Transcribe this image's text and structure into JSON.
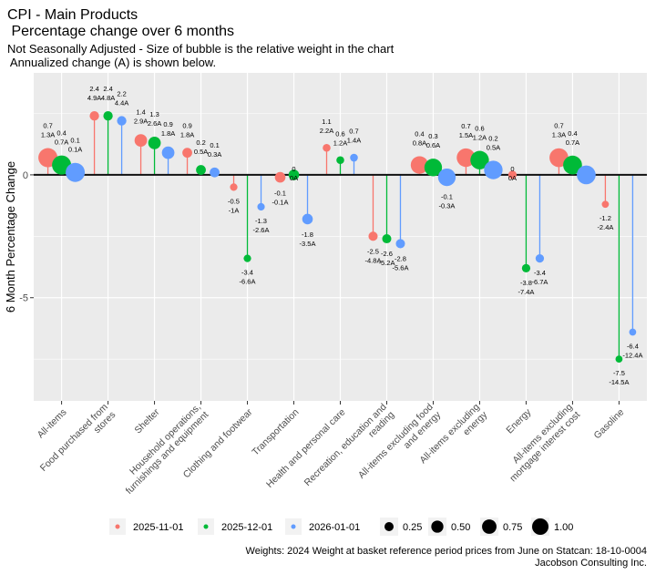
{
  "chart_data": {
    "type": "scatter",
    "subtype": "lollipop-bubble",
    "title": "CPI - Main Products",
    "title_line2": " Percentage change over 6 months",
    "subtitle": "Not Seasonally Adjusted - Size of bubble is the relative weight in the chart",
    "subtitle_line2": " Annualized change (A) is shown below.",
    "ylabel": "6 Month Percentage Change",
    "xlabel": "",
    "ylim": [
      -9.2,
      4.15
    ],
    "yticks": [
      0,
      -5
    ],
    "ytick_labels": [
      "0",
      "-5"
    ],
    "grid": true,
    "zero_line": true,
    "colors": {
      "2025-11-01": "#F8766D",
      "2025-12-01": "#00BA38",
      "2026-01-01": "#619CFF"
    },
    "series_names": [
      "2025-11-01",
      "2025-12-01",
      "2026-01-01"
    ],
    "categories": [
      {
        "label": [
          "All-items"
        ],
        "weight": 1.0,
        "values": [
          0.7,
          0.4,
          0.1
        ],
        "labels": [
          [
            "0.7",
            "1.3A"
          ],
          [
            "0.4",
            "0.7A"
          ],
          [
            "0.1",
            "0.1A"
          ]
        ]
      },
      {
        "label": [
          "Food purchased from",
          "stores"
        ],
        "weight": 0.11,
        "values": [
          2.4,
          2.4,
          2.2
        ],
        "labels": [
          [
            "2.4",
            "4.9A"
          ],
          [
            "2.4",
            "4.8A"
          ],
          [
            "2.2",
            "4.4A"
          ]
        ]
      },
      {
        "label": [
          "Shelter"
        ],
        "weight": 0.3,
        "values": [
          1.4,
          1.3,
          0.9
        ],
        "labels": [
          [
            "1.4",
            "2.9A"
          ],
          [
            "1.3",
            "2.6A"
          ],
          [
            "0.9",
            "1.8A"
          ]
        ]
      },
      {
        "label": [
          "Household operations,",
          "furnishings and equipment"
        ],
        "weight": 0.13,
        "values": [
          0.9,
          0.2,
          0.1
        ],
        "labels": [
          [
            "0.9",
            "1.8A"
          ],
          [
            "0.2",
            "0.5A"
          ],
          [
            "0.1",
            "0.3A"
          ]
        ]
      },
      {
        "label": [
          "Clothing and footwear"
        ],
        "weight": 0.04,
        "values": [
          -0.5,
          -3.4,
          -1.3
        ],
        "labels": [
          [
            "-0.5",
            "-1A"
          ],
          [
            "-3.4",
            "-6.6A"
          ],
          [
            "-1.3",
            "-2.6A"
          ]
        ]
      },
      {
        "label": [
          "Transportation"
        ],
        "weight": 0.17,
        "values": [
          -0.1,
          0,
          -1.8
        ],
        "labels": [
          [
            "-0.1",
            "-0.1A"
          ],
          [
            "0",
            "0A"
          ],
          [
            "-1.8",
            "-3.5A"
          ]
        ]
      },
      {
        "label": [
          "Health and personal care"
        ],
        "weight": 0.05,
        "values": [
          1.1,
          0.6,
          0.7
        ],
        "labels": [
          [
            "1.1",
            "2.2A"
          ],
          [
            "0.6",
            "1.2A"
          ],
          [
            "0.7",
            "1.4A"
          ]
        ]
      },
      {
        "label": [
          "Recreation, education and",
          "reading"
        ],
        "weight": 0.1,
        "values": [
          -2.5,
          -2.6,
          -2.8
        ],
        "labels": [
          [
            "-2.5",
            "-4.8A"
          ],
          [
            "-2.6",
            "-5.2A"
          ],
          [
            "-2.8",
            "-5.6A"
          ]
        ]
      },
      {
        "label": [
          "All-items excluding food",
          "and energy"
        ],
        "weight": 0.8,
        "values": [
          0.4,
          0.3,
          -0.1
        ],
        "labels": [
          [
            "0.4",
            "0.8A"
          ],
          [
            "0.3",
            "0.6A"
          ],
          [
            "-0.1",
            "-0.3A"
          ]
        ]
      },
      {
        "label": [
          "All-items excluding",
          "energy"
        ],
        "weight": 0.92,
        "values": [
          0.7,
          0.6,
          0.2
        ],
        "labels": [
          [
            "0.7",
            "1.5A"
          ],
          [
            "0.6",
            "1.2A"
          ],
          [
            "0.2",
            "0.5A"
          ]
        ]
      },
      {
        "label": [
          "Energy"
        ],
        "weight": 0.07,
        "values": [
          0,
          -3.8,
          -3.4
        ],
        "labels": [
          [
            "0",
            "0A"
          ],
          [
            "-3.8",
            "-7.4A"
          ],
          [
            "-3.4",
            "-6.7A"
          ]
        ]
      },
      {
        "label": [
          "All-items excluding",
          "mortgage interest cost"
        ],
        "weight": 0.96,
        "values": [
          0.7,
          0.4,
          0
        ],
        "labels": [
          [
            "0.7",
            "1.3A"
          ],
          [
            "0.4",
            "0.7A"
          ],
          null
        ]
      },
      {
        "label": [
          "Gasoline"
        ],
        "weight": 0.03,
        "values": [
          -1.2,
          -7.5,
          -6.4
        ],
        "labels": [
          [
            "-1.2",
            "-2.4A"
          ],
          [
            "-7.5",
            "-14.5A"
          ],
          [
            "-6.4",
            "-12.4A"
          ]
        ]
      }
    ],
    "legend": {
      "placement": "bottom",
      "color_items": [
        "2025-11-01",
        "2025-12-01",
        "2026-01-01"
      ],
      "size_items": [
        0.25,
        0.5,
        0.75,
        1.0
      ],
      "size_labels": [
        "0.25",
        "0.50",
        "0.75",
        "1.00"
      ]
    },
    "caption": "Weights: 2024 Weight at basket reference period prices  from June on Statcan: 18-10-0004",
    "caption_line2": "Jacobson Consulting Inc."
  }
}
